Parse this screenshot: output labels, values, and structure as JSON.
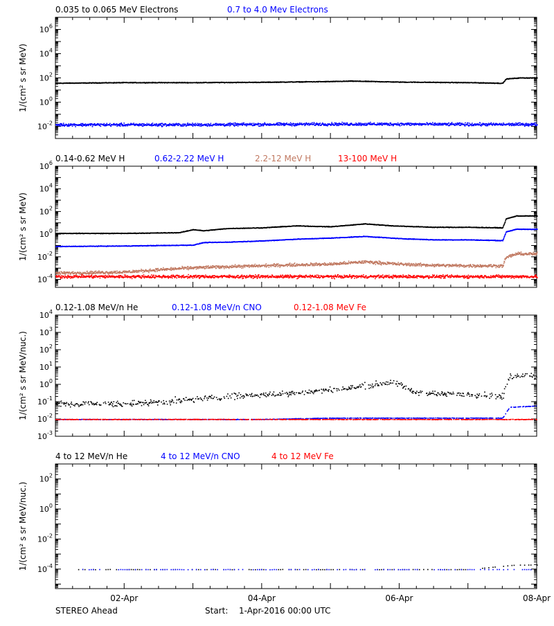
{
  "footer": {
    "spacecraft": "STEREO Ahead",
    "start_label": "Start:",
    "start_value": "1-Apr-2016 00:00 UTC"
  },
  "x_axis": {
    "tick_labels": [
      "02-Apr",
      "04-Apr",
      "06-Apr",
      "08-Apr"
    ],
    "tick_days": [
      1,
      3,
      5,
      7
    ],
    "range_days": [
      0,
      7
    ]
  },
  "chart_data": [
    {
      "type": "scatter",
      "id": "electrons",
      "ylabel": "1/(cm² s sr MeV)",
      "yscale": "log",
      "ylim": [
        0.001,
        10000000
      ],
      "tick_exponents": [
        -2,
        0,
        2,
        4,
        6
      ],
      "legend": [
        "0.035 to 0.065 MeV Electrons",
        "0.7 to 4.0 Mev Electrons"
      ],
      "series": [
        {
          "name": "0.035 to 0.065 MeV Electrons",
          "color": "#000000",
          "x": [
            0.0,
            1.0,
            2.0,
            3.0,
            4.0,
            4.3,
            5.0,
            6.0,
            6.5,
            6.55,
            6.75,
            7.0
          ],
          "y": [
            40,
            45,
            45,
            48,
            55,
            60,
            50,
            45,
            40,
            90,
            110,
            110
          ]
        },
        {
          "name": "0.7 to 4.0 Mev Electrons",
          "color": "#0000ff",
          "x": [
            0.0,
            1.0,
            2.0,
            3.0,
            4.0,
            5.0,
            6.0,
            7.0
          ],
          "y": [
            0.015,
            0.015,
            0.015,
            0.016,
            0.017,
            0.017,
            0.016,
            0.016
          ]
        }
      ]
    },
    {
      "type": "scatter",
      "id": "protons",
      "ylabel": "1/(cm² s sr MeV)",
      "yscale": "log",
      "ylim": [
        2e-05,
        1000000
      ],
      "tick_exponents": [
        -4,
        -2,
        0,
        2,
        4,
        6
      ],
      "legend": [
        "0.14-0.62 MeV H",
        "0.62-2.22 MeV H",
        "2.2-12 MeV H",
        "13-100 MeV H"
      ],
      "series": [
        {
          "name": "0.14-0.62 MeV H",
          "color": "#000000",
          "x": [
            0.0,
            1.0,
            1.8,
            2.0,
            2.15,
            2.5,
            3.0,
            3.5,
            4.0,
            4.5,
            4.9,
            5.5,
            6.0,
            6.5,
            6.55,
            6.7,
            7.0
          ],
          "y": [
            1.3,
            1.3,
            1.5,
            2.8,
            2.2,
            3.5,
            4.0,
            6.0,
            5.0,
            9.0,
            6.0,
            4.5,
            4.5,
            4.0,
            25,
            45,
            45
          ]
        },
        {
          "name": "0.62-2.22 MeV H",
          "color": "#0000ff",
          "x": [
            0.0,
            1.0,
            2.0,
            2.15,
            2.5,
            3.0,
            3.5,
            4.0,
            4.5,
            5.0,
            5.5,
            6.0,
            6.5,
            6.55,
            6.7,
            7.0
          ],
          "y": [
            0.09,
            0.1,
            0.12,
            0.2,
            0.22,
            0.28,
            0.4,
            0.5,
            0.7,
            0.45,
            0.35,
            0.35,
            0.3,
            1.8,
            3.0,
            3.0
          ]
        },
        {
          "name": "2.2-12 MeV H",
          "color": "#c07860",
          "x": [
            0.0,
            1.0,
            1.5,
            2.0,
            2.5,
            3.0,
            3.5,
            4.0,
            4.5,
            5.0,
            5.5,
            6.0,
            6.5,
            6.55,
            6.7,
            7.0
          ],
          "y": [
            0.0004,
            0.0005,
            0.0008,
            0.0012,
            0.0015,
            0.0018,
            0.0022,
            0.0025,
            0.004,
            0.0025,
            0.002,
            0.0018,
            0.0018,
            0.01,
            0.02,
            0.02
          ]
        },
        {
          "name": "13-100 MeV H",
          "color": "#ff0000",
          "x": [
            0.0,
            1.0,
            2.0,
            3.0,
            4.0,
            5.0,
            6.0,
            7.0
          ],
          "y": [
            0.0002,
            0.0002,
            0.0002,
            0.0002,
            0.0002,
            0.0002,
            0.0002,
            0.0002
          ]
        }
      ]
    },
    {
      "type": "scatter",
      "id": "heavy-low",
      "ylabel": "1/(cm² s sr MeV/nuc.)",
      "yscale": "log",
      "ylim": [
        0.001,
        10000
      ],
      "tick_exponents": [
        -3,
        -2,
        -1,
        0,
        1,
        2,
        3,
        4
      ],
      "legend": [
        "0.12-1.08 MeV/n He",
        "0.12-1.08 MeV/n CNO",
        "0.12-1.08 MeV Fe"
      ],
      "series": [
        {
          "name": "0.12-1.08 MeV/n He",
          "color": "#000000",
          "x": [
            0.0,
            1.0,
            1.8,
            2.3,
            2.8,
            3.3,
            3.8,
            4.2,
            4.6,
            4.9,
            5.2,
            5.6,
            6.0,
            6.5,
            6.6,
            6.8,
            7.0
          ],
          "y": [
            0.08,
            0.08,
            0.12,
            0.18,
            0.25,
            0.3,
            0.45,
            0.6,
            1.0,
            1.5,
            0.4,
            0.3,
            0.3,
            0.2,
            3.0,
            4.0,
            3.0
          ]
        },
        {
          "name": "0.12-1.08 MeV/n CNO",
          "color": "#0000ff",
          "x": [
            0.0,
            1.0,
            2.0,
            3.0,
            4.0,
            5.0,
            6.0,
            6.5,
            6.6,
            7.0
          ],
          "y": [
            0.01,
            0.01,
            0.01,
            0.01,
            0.012,
            0.012,
            0.012,
            0.012,
            0.05,
            0.06
          ]
        },
        {
          "name": "0.12-1.08 MeV Fe",
          "color": "#ff0000",
          "x": [
            0.0,
            1.0,
            2.0,
            3.0,
            4.0,
            5.0,
            6.0,
            7.0
          ],
          "y": [
            0.01,
            0.01,
            0.01,
            0.01,
            0.01,
            0.01,
            0.01,
            0.01
          ]
        }
      ]
    },
    {
      "type": "scatter",
      "id": "heavy-high",
      "ylabel": "1/(cm² s sr MeV/nuc.)",
      "yscale": "log",
      "ylim": [
        5e-06,
        1000
      ],
      "tick_exponents": [
        -4,
        -2,
        0,
        2
      ],
      "legend": [
        "4 to 12 MeV/n He",
        "4 to 12 MeV/n CNO",
        "4 to 12 MeV Fe"
      ],
      "series": [
        {
          "name": "4 to 12 MeV/n He",
          "color": "#000000",
          "x": [
            0.3,
            1.0,
            2.0,
            3.0,
            4.0,
            5.0,
            6.0,
            6.7,
            7.0
          ],
          "y": [
            0.0001,
            0.0001,
            0.0001,
            0.0001,
            0.0001,
            0.0001,
            0.0001,
            0.0002,
            0.0002
          ]
        },
        {
          "name": "4 to 12 MeV/n CNO",
          "color": "#0000ff",
          "x": [
            0.3,
            1.0,
            2.0,
            3.0,
            4.0,
            5.0,
            6.0,
            7.0
          ],
          "y": [
            0.0001,
            0.0001,
            0.0001,
            0.0001,
            0.0001,
            0.0001,
            0.0001,
            0.0001
          ]
        },
        {
          "name": "4 to 12 MeV Fe",
          "color": "#ff0000",
          "x": [],
          "y": []
        }
      ]
    }
  ]
}
